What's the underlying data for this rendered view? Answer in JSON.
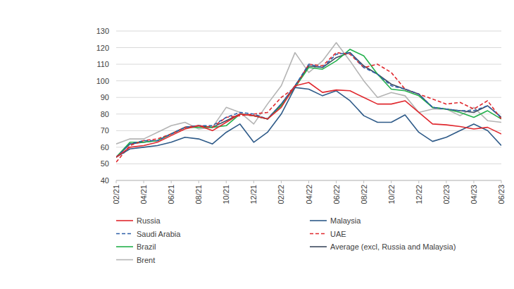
{
  "chart_data": {
    "type": "line",
    "categories": [
      "02/21",
      null,
      "04/21",
      null,
      "06/21",
      null,
      "08/21",
      null,
      "10/21",
      null,
      "12/21",
      null,
      "02/22",
      null,
      "04/22",
      null,
      "06/22",
      null,
      "08/22",
      null,
      "10/22",
      null,
      "12/22",
      null,
      "02/23",
      null,
      "04/23",
      null,
      "06/23"
    ],
    "series": [
      {
        "name": "Russia",
        "color": "#e0282e",
        "line_style": "solid",
        "values": [
          54,
          60,
          61,
          63,
          67,
          71,
          73,
          70,
          75,
          80,
          79,
          77,
          84,
          97,
          99,
          93,
          94.5,
          94,
          90,
          86,
          86,
          88,
          81,
          74,
          73.5,
          72.5,
          71,
          72,
          68
        ]
      },
      {
        "name": "Malaysia",
        "color": "#2e5a88",
        "line_style": "solid",
        "values": [
          54,
          59,
          60,
          61,
          63,
          66,
          65,
          62,
          69,
          74,
          63,
          69,
          80,
          96,
          95,
          91,
          94,
          88,
          79,
          75,
          75,
          79.5,
          69,
          63.5,
          66,
          70,
          74,
          70,
          61
        ]
      },
      {
        "name": "Saudi Arabia",
        "color": "#2e5fa8",
        "line_style": "dashed",
        "values": [
          54,
          62,
          64,
          64,
          68,
          72,
          73,
          73,
          78,
          81,
          80,
          77,
          86,
          97,
          110,
          108,
          116,
          117,
          108,
          104,
          97,
          95,
          92,
          84,
          83,
          82,
          82,
          85,
          78
        ]
      },
      {
        "name": "UAE",
        "color": "#e0282e",
        "line_style": "dashed",
        "values": [
          51,
          61,
          64,
          65,
          68,
          72,
          73,
          72,
          78,
          79,
          80,
          81,
          90,
          96,
          110,
          109,
          117,
          116,
          108,
          110,
          105,
          95,
          92,
          89,
          86,
          87,
          83,
          88,
          77
        ]
      },
      {
        "name": "Brazil",
        "color": "#22b04b",
        "line_style": "solid",
        "values": [
          54,
          63,
          63,
          64,
          68,
          72,
          72,
          72,
          73,
          80,
          79,
          77,
          85,
          96,
          108,
          107,
          112,
          119,
          115,
          104,
          95,
          94,
          91,
          84,
          83,
          81,
          78,
          82,
          77
        ]
      },
      {
        "name": "Average (excl, Russia and Malaysia)",
        "color": "#3b4a5e",
        "line_style": "solid",
        "values": [
          54,
          62,
          63,
          64,
          68,
          72,
          73,
          72,
          76,
          80,
          79,
          77,
          86,
          97,
          109,
          108,
          114,
          117,
          109,
          104,
          98,
          95,
          92,
          84,
          83,
          82,
          81,
          85,
          78
        ]
      },
      {
        "name": "Brent",
        "color": "#b4b4b4",
        "line_style": "solid",
        "values": [
          62,
          65,
          65,
          69,
          73,
          75,
          71,
          72,
          84,
          81,
          74,
          86,
          97,
          117,
          105,
          112,
          123,
          112,
          100,
          90,
          93,
          91,
          81,
          83,
          83,
          79,
          84,
          76,
          75
        ]
      }
    ],
    "ylim": [
      40,
      130
    ],
    "yticks": [
      40,
      50,
      60,
      70,
      80,
      90,
      100,
      110,
      120,
      130
    ],
    "grid": true,
    "legend": "bottom"
  }
}
